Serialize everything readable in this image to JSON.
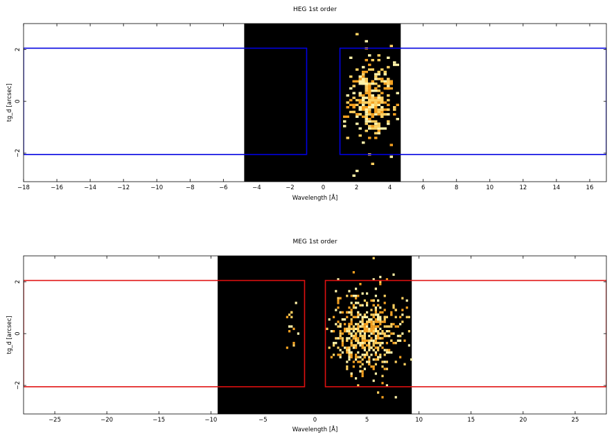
{
  "chart_data": [
    {
      "type": "heatmap",
      "title": "HEG 1st order",
      "xlabel": "Wavelength [Å]",
      "ylabel": "tg_d [arcsec]",
      "xlim": [
        -18,
        17
      ],
      "ylim": [
        -3.1,
        3.0
      ],
      "xticks": [
        -18,
        -16,
        -14,
        -12,
        -10,
        -8,
        -6,
        -4,
        -2,
        0,
        2,
        4,
        6,
        8,
        10,
        12,
        14,
        16
      ],
      "yticks": [
        -2,
        0,
        2
      ],
      "image_region": {
        "x": [
          -4.75,
          4.65
        ],
        "y": [
          -3.1,
          3.0
        ],
        "background": "#000000"
      },
      "event_cluster": {
        "x_center": 2.9,
        "x_sigma": 0.7,
        "y_center": 0.1,
        "y_sigma": 0.7,
        "approx_pixels": 320,
        "colors": [
          "#f4a020",
          "#ffd060",
          "#fff2a8"
        ]
      },
      "region_color": "#0000e0",
      "regions": [
        {
          "name": "minus_order",
          "x": [
            -18,
            -1.0
          ],
          "y": [
            -2.05,
            2.05
          ]
        },
        {
          "name": "plus_order",
          "x": [
            1.0,
            17
          ],
          "y": [
            -2.05,
            2.05
          ]
        }
      ]
    },
    {
      "type": "heatmap",
      "title": "MEG 1st order",
      "xlabel": "Wavelength [Å]",
      "ylabel": "tg_d [arcsec]",
      "xlim": [
        -28,
        28
      ],
      "ylim": [
        -3.1,
        3.0
      ],
      "xticks": [
        -25,
        -20,
        -15,
        -10,
        -5,
        0,
        5,
        10,
        15,
        20,
        25
      ],
      "yticks": [
        -2,
        0,
        2
      ],
      "image_region": {
        "x": [
          -9.35,
          9.3
        ],
        "y": [
          -3.1,
          3.0
        ],
        "background": "#000000"
      },
      "event_cluster": {
        "x_center": 4.8,
        "x_sigma": 1.8,
        "y_center": 0.1,
        "y_sigma": 0.75,
        "approx_pixels": 520,
        "colors": [
          "#f4a020",
          "#ffd060",
          "#fff2a8"
        ]
      },
      "region_color": "#e01010",
      "regions": [
        {
          "name": "minus_order",
          "x": [
            -28,
            -1.0
          ],
          "y": [
            -2.05,
            2.05
          ]
        },
        {
          "name": "plus_order",
          "x": [
            1.0,
            28
          ],
          "y": [
            -2.05,
            2.05
          ]
        }
      ]
    }
  ]
}
